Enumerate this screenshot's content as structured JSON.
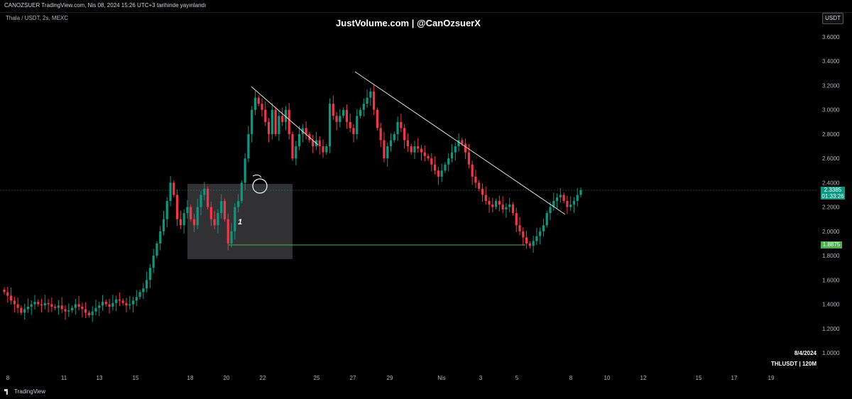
{
  "header": {
    "publish_text": "CANOZSUER TradingView.com, Nis 08, 2024 15:26 UTC+3 tarihinde yayınlandı"
  },
  "symbol_label": "Thala / USDT, 2s, MEXC",
  "watermark_text": "JustVolume.com | @CanOzsuerX",
  "currency_button": "USDT",
  "price_axis_labels": [
    "3.6000",
    "3.4000",
    "3.2000",
    "3.0000",
    "2.8000",
    "2.6000",
    "2.4000",
    "2.2000",
    "2.0000",
    "1.8000",
    "1.6000",
    "1.4000",
    "1.2000",
    "1.0000"
  ],
  "time_axis_labels": [
    "8",
    "11",
    "13",
    "15",
    "18",
    "20",
    "22",
    "25",
    "27",
    "29",
    "Nis",
    "3",
    "5",
    "8",
    "10",
    "12",
    "15",
    "17",
    "19"
  ],
  "current_price": {
    "value": "2.3385",
    "countdown": "01:33:26",
    "color": "#089981"
  },
  "level_tag": {
    "value": "1.8875",
    "color": "#4caf50"
  },
  "annotation_label": "1",
  "bottom_info": {
    "date": "8/4/2024",
    "ticker": "THLUSDT | 120M"
  },
  "footer": {
    "brand": "TradingView"
  },
  "colors": {
    "up": "#089981",
    "down": "#f23645",
    "background": "#000000"
  },
  "chart_data": {
    "type": "candlestick",
    "y_axis_range": [
      1.0,
      3.65
    ],
    "date_range": [
      "2024-03-07",
      "2024-04-08"
    ],
    "close_series": [
      1.5,
      1.47,
      1.43,
      1.4,
      1.37,
      1.33,
      1.36,
      1.38,
      1.4,
      1.42,
      1.4,
      1.39,
      1.41,
      1.4,
      1.38,
      1.37,
      1.39,
      1.36,
      1.34,
      1.35,
      1.37,
      1.4,
      1.38,
      1.36,
      1.33,
      1.31,
      1.34,
      1.37,
      1.39,
      1.42,
      1.4,
      1.38,
      1.41,
      1.44,
      1.43,
      1.41,
      1.39,
      1.4,
      1.43,
      1.46,
      1.5,
      1.53,
      1.6,
      1.7,
      1.8,
      1.9,
      2.0,
      2.1,
      2.25,
      2.4,
      2.3,
      2.1,
      2.05,
      2.15,
      2.2,
      2.1,
      2.05,
      2.2,
      2.3,
      2.35,
      2.2,
      2.1,
      2.05,
      2.15,
      2.25,
      2.1,
      1.9,
      2.0,
      2.2,
      2.25,
      2.4,
      2.6,
      2.8,
      3.0,
      3.1,
      3.05,
      3.0,
      2.9,
      2.8,
      3.0,
      2.8,
      2.95,
      2.9,
      3.0,
      2.8,
      2.6,
      2.7,
      2.8,
      2.85,
      2.8,
      2.75,
      2.7,
      2.75,
      2.7,
      2.65,
      2.7,
      3.05,
      2.95,
      2.9,
      2.95,
      3.0,
      2.9,
      2.85,
      2.8,
      2.95,
      3.0,
      3.05,
      3.1,
      3.15,
      3.0,
      2.85,
      2.75,
      2.6,
      2.7,
      2.75,
      2.8,
      2.9,
      2.85,
      2.75,
      2.7,
      2.65,
      2.7,
      2.68,
      2.65,
      2.62,
      2.6,
      2.55,
      2.5,
      2.45,
      2.5,
      2.55,
      2.6,
      2.65,
      2.7,
      2.75,
      2.72,
      2.65,
      2.55,
      2.45,
      2.4,
      2.35,
      2.3,
      2.25,
      2.22,
      2.2,
      2.25,
      2.22,
      2.18,
      2.2,
      2.22,
      2.15,
      2.05,
      2.0,
      1.95,
      1.9,
      1.88,
      1.92,
      1.96,
      2.0,
      2.05,
      2.15,
      2.2,
      2.25,
      2.28,
      2.3,
      2.25,
      2.2,
      2.22,
      2.25,
      2.3,
      2.34
    ]
  }
}
